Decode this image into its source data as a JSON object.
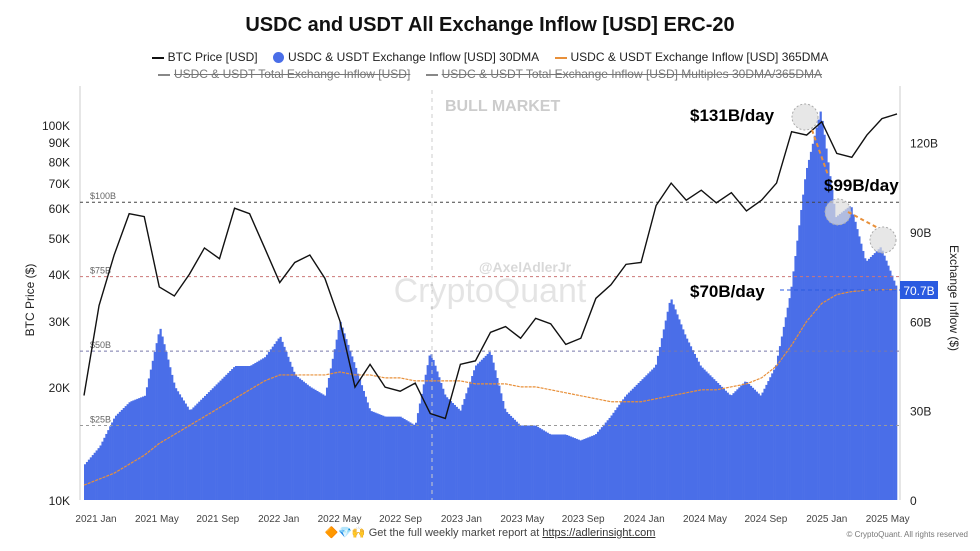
{
  "chart_data": {
    "type": "bar+line",
    "title": "USDC and USDT All Exchange Inflow [USD] ERC-20",
    "legend": [
      {
        "label": "BTC Price [USD]",
        "color": "#111111",
        "style": "line",
        "active": true
      },
      {
        "label": "USDC & USDT Exchange Inflow [USD] 30DMA",
        "color": "#4a6ee8",
        "style": "bar",
        "active": true
      },
      {
        "label": "USDC & USDT Exchange Inflow [USD] 365DMA",
        "color": "#e8903a",
        "style": "dashed",
        "active": true
      },
      {
        "label": "USDC & USDT Total Exchange Inflow [USD]",
        "color": "#888888",
        "style": "line",
        "active": false
      },
      {
        "label": "USDC & USDT Total Exchange Inflow [USD] Multiples 30DMA/365DMA",
        "color": "#888888",
        "style": "line",
        "active": false
      }
    ],
    "ylabel_left": "BTC Price ($)",
    "ylabel_right": "Exchange Inflow ($)",
    "y_left_scale": "log",
    "y_left_range": [
      10000,
      130000
    ],
    "y_left_ticks": [
      "10K",
      "20K",
      "30K",
      "40K",
      "50K",
      "60K",
      "70K",
      "80K",
      "90K",
      "100K"
    ],
    "y_left_tick_values": [
      10000,
      20000,
      30000,
      40000,
      50000,
      60000,
      70000,
      80000,
      90000,
      100000
    ],
    "y_right_range": [
      0,
      135
    ],
    "y_right_ticks": [
      "0",
      "30B",
      "60B",
      "90B",
      "120B"
    ],
    "y_right_tick_values": [
      0,
      30,
      60,
      90,
      120
    ],
    "x_ticks": [
      "2021 Jan",
      "2021 May",
      "2021 Sep",
      "2022 Jan",
      "2022 May",
      "2022 Sep",
      "2023 Jan",
      "2023 May",
      "2023 Sep",
      "2024 Jan",
      "2024 May",
      "2024 Sep",
      "2025 Jan",
      "2025 May"
    ],
    "months": [
      "2020-12",
      "2021-01",
      "2021-02",
      "2021-03",
      "2021-04",
      "2021-05",
      "2021-06",
      "2021-07",
      "2021-08",
      "2021-09",
      "2021-10",
      "2021-11",
      "2021-12",
      "2022-01",
      "2022-02",
      "2022-03",
      "2022-04",
      "2022-05",
      "2022-06",
      "2022-07",
      "2022-08",
      "2022-09",
      "2022-10",
      "2022-11",
      "2022-12",
      "2023-01",
      "2023-02",
      "2023-03",
      "2023-04",
      "2023-05",
      "2023-06",
      "2023-07",
      "2023-08",
      "2023-09",
      "2023-10",
      "2023-11",
      "2023-12",
      "2024-01",
      "2024-02",
      "2024-03",
      "2024-04",
      "2024-05",
      "2024-06",
      "2024-07",
      "2024-08",
      "2024-09",
      "2024-10",
      "2024-11",
      "2024-12",
      "2025-01",
      "2025-02",
      "2025-03",
      "2025-04",
      "2025-05",
      "2025-06"
    ],
    "series": [
      {
        "name": "BTC Price [USD]",
        "values": [
          19000,
          33000,
          45000,
          58000,
          57000,
          37000,
          35000,
          40000,
          47000,
          44000,
          60000,
          58000,
          47000,
          38000,
          43000,
          45000,
          39000,
          30000,
          20000,
          23000,
          20000,
          19500,
          20500,
          17000,
          16500,
          23000,
          23500,
          28000,
          29000,
          27000,
          30500,
          29500,
          26000,
          27000,
          34500,
          37500,
          42500,
          43000,
          61000,
          70000,
          63000,
          67000,
          62000,
          66000,
          59000,
          63000,
          70000,
          96000,
          94000,
          102000,
          84000,
          82000,
          94000,
          104000,
          107000
        ]
      },
      {
        "name": "USDC & USDT Exchange Inflow [USD] 30DMA",
        "unit": "B",
        "values": [
          12,
          18,
          28,
          33,
          35,
          58,
          38,
          30,
          35,
          40,
          45,
          45,
          48,
          55,
          42,
          38,
          35,
          60,
          45,
          30,
          28,
          28,
          25,
          50,
          35,
          30,
          45,
          50,
          30,
          25,
          25,
          22,
          22,
          20,
          22,
          28,
          35,
          40,
          45,
          68,
          55,
          45,
          40,
          35,
          40,
          35,
          45,
          70,
          110,
          131,
          95,
          99,
          80,
          85,
          72
        ]
      },
      {
        "name": "USDC & USDT Exchange Inflow [USD] 365DMA",
        "unit": "B",
        "values": [
          5,
          7,
          9,
          12,
          15,
          19,
          22,
          25,
          28,
          31,
          34,
          37,
          40,
          42,
          42,
          42,
          42,
          43,
          42,
          42,
          41,
          41,
          40,
          40,
          40,
          40,
          39,
          39,
          39,
          38,
          38,
          37,
          36,
          35,
          34,
          33,
          33,
          33,
          34,
          35,
          36,
          37,
          37,
          38,
          39,
          41,
          45,
          52,
          60,
          66,
          69,
          70,
          70.5,
          70.6,
          70.7
        ]
      }
    ],
    "reference_lines": [
      "$100B",
      "$75B",
      "$50B",
      "$25B"
    ],
    "reference_values": [
      100,
      75,
      50,
      25
    ],
    "annotations": [
      "BULL MARKET",
      "$131B/day",
      "$99B/day",
      "$70B/day"
    ],
    "current_value_label": "70.7B",
    "watermark": "CryptoQuant",
    "handle": "@AxelAdlerJr"
  },
  "footer": {
    "emoji": "🔶💎🙌",
    "text": "Get the full weekly market report at ",
    "link": "https://adlerinsight.com",
    "copyright": "© CryptoQuant. All rights reserved"
  },
  "colors": {
    "bars": "#4a6ee8",
    "btc": "#111111",
    "ma365": "#e8903a",
    "label_bg": "#2a5ae0"
  }
}
